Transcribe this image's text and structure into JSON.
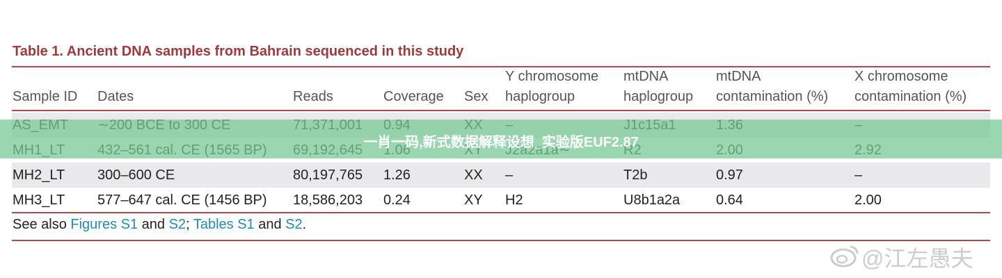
{
  "table": {
    "title": "Table 1. Ancient DNA samples from Bahrain sequenced in this study",
    "header": [
      [
        "Sample ID"
      ],
      [
        "Dates"
      ],
      [
        "Reads"
      ],
      [
        "Coverage"
      ],
      [
        "Sex"
      ],
      [
        "Y chromosome",
        "haplogroup"
      ],
      [
        "mtDNA",
        "haplogroup"
      ],
      [
        "mtDNA",
        "contamination (%)"
      ],
      [
        "X chromosome",
        "contamination (%)"
      ]
    ],
    "rows": [
      [
        "AS_EMT",
        "∼200 BCE to 300 CE",
        "71,371,001",
        "0.94",
        "XX",
        "–",
        "J1c15a1",
        "1.36",
        "–"
      ],
      [
        "MH1_LT",
        "432–561 cal. CE (1565 BP)",
        "69,192,645",
        "1.06",
        "XY",
        "J2a2a1a∼",
        "R2",
        "2.00",
        "2.92"
      ],
      [
        "MH2_LT",
        "300–600 CE",
        "80,197,765",
        "1.26",
        "XX",
        "–",
        "T2b",
        "0.97",
        "–"
      ],
      [
        "MH3_LT",
        "577–647 cal. CE (1456 BP)",
        "18,586,203",
        "0.24",
        "XY",
        "H2",
        "U8b1a2a",
        "0.64",
        "2.00"
      ]
    ],
    "footnote": [
      "See also ",
      "Figures S1",
      " and ",
      "S2",
      "; ",
      "Tables S1",
      " and ",
      "S2",
      "."
    ]
  },
  "banner": "一肖一码,新式数据解释设想_实验版EUF2.87",
  "watermark": "@江左愚夫"
}
